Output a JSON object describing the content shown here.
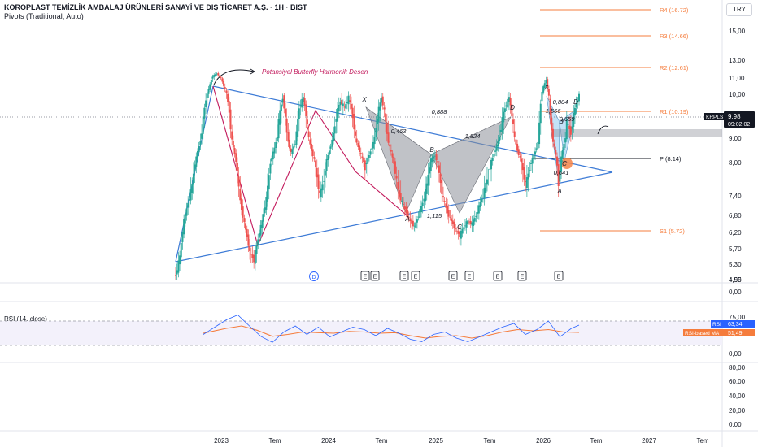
{
  "header": {
    "title": "KOROPLAST TEMİZLİK AMBALAJ ÜRÜNLERİ SANAYİ VE DIŞ TİCARET A.Ş. · 1H · BIST",
    "indicator": "Pivots (Traditional, Auto)",
    "currency": "TRY"
  },
  "colors": {
    "candle_up": "#26a69a",
    "candle_down": "#ef5350",
    "pivot_line": "#f57c3c",
    "pivot_p": "#131722",
    "trendline": "#3d7bd6",
    "zigzag": "#c2185b",
    "harmonic_fill": "#8c8f99",
    "rsi_line": "#2962ff",
    "rsi_ma": "#f57c3c",
    "price_badge": "#131722"
  },
  "annotation": {
    "text": "Potansiyel Butterfly Harmonik Desen"
  },
  "price_badge": {
    "ticker": "KRPLS",
    "price": "9,98",
    "countdown": "09:02:02"
  },
  "rsi": {
    "title": "RSI (14, close)",
    "rsi_label": "RSI",
    "rsi_value": "63,34",
    "ma_label": "RSI-based MA",
    "ma_value": "51,49",
    "upper_band": 70,
    "lower_band": 30
  },
  "chart_data": {
    "type": "candlestick",
    "symbol": "KRPLS",
    "timeframe": "1H",
    "y_ticks": [
      "15,00",
      "13,00",
      "11,00",
      "10,00",
      "9,00",
      "8,00",
      "7,40",
      "6,80",
      "6,20",
      "5,70",
      "5,30",
      "4,90",
      "4,55"
    ],
    "x_ticks": [
      "2023",
      "Tem",
      "2024",
      "Tem",
      "2025",
      "Tem",
      "2026",
      "Tem",
      "2027",
      "Tem"
    ],
    "pivots": [
      {
        "name": "R4",
        "label": "R4 (16.72)",
        "value": 16.72
      },
      {
        "name": "R3",
        "label": "R3 (14.66)",
        "value": 14.66
      },
      {
        "name": "R2",
        "label": "R2 (12.61)",
        "value": 12.61
      },
      {
        "name": "R1",
        "label": "R1 (10.19)",
        "value": 10.19
      },
      {
        "name": "P",
        "label": "P (8.14)",
        "value": 8.14
      },
      {
        "name": "S1",
        "label": "S1 (5.72)",
        "value": 5.72
      }
    ],
    "harmonic_labels": [
      "X",
      "A",
      "B",
      "C",
      "D",
      "X",
      "A",
      "B",
      "C",
      "D"
    ],
    "ratio_labels": [
      "0,888",
      "0,463",
      "1,824",
      "1,115",
      "0,804",
      "1,566",
      "0,659",
      "0,641"
    ],
    "event_markers": [
      "D",
      "E",
      "E",
      "E",
      "E",
      "E",
      "E",
      "E",
      "E",
      "E"
    ],
    "panel2_ticks": [
      "0,00"
    ],
    "rsi_ticks": [
      "75,00",
      "0,00"
    ],
    "panel4_ticks": [
      "80,00",
      "60,00",
      "40,00",
      "20,00",
      "0,00"
    ],
    "close_path": [
      [
        0,
        5.0
      ],
      [
        1,
        5.5
      ],
      [
        2,
        6.6
      ],
      [
        3,
        7.2
      ],
      [
        4,
        7.6
      ],
      [
        5,
        8.2
      ],
      [
        6,
        8.9
      ],
      [
        7,
        9.6
      ],
      [
        8,
        10.3
      ],
      [
        9,
        11.2
      ],
      [
        10,
        11.5
      ],
      [
        11,
        11.0
      ],
      [
        12,
        10.3
      ],
      [
        13,
        9.5
      ],
      [
        14,
        8.6
      ],
      [
        15,
        7.8
      ],
      [
        16,
        7.0
      ],
      [
        17,
        6.3
      ],
      [
        18,
        5.6
      ],
      [
        19,
        5.4
      ],
      [
        20,
        6.0
      ],
      [
        21,
        6.6
      ],
      [
        22,
        7.3
      ],
      [
        23,
        8.0
      ],
      [
        24,
        8.6
      ],
      [
        25,
        9.3
      ],
      [
        26,
        9.9
      ],
      [
        27,
        9.1
      ],
      [
        28,
        8.4
      ],
      [
        29,
        8.8
      ],
      [
        30,
        9.6
      ],
      [
        31,
        9.9
      ],
      [
        32,
        9.2
      ],
      [
        33,
        8.5
      ],
      [
        34,
        7.9
      ],
      [
        35,
        7.4
      ],
      [
        36,
        7.7
      ],
      [
        37,
        8.3
      ],
      [
        38,
        8.9
      ],
      [
        39,
        9.4
      ],
      [
        40,
        9.8
      ],
      [
        41,
        9.6
      ],
      [
        42,
        9.9
      ],
      [
        43,
        9.4
      ],
      [
        44,
        8.8
      ],
      [
        45,
        8.3
      ],
      [
        46,
        7.9
      ],
      [
        47,
        8.3
      ],
      [
        48,
        8.8
      ],
      [
        49,
        9.4
      ],
      [
        50,
        9.9
      ],
      [
        51,
        9.3
      ],
      [
        52,
        8.6
      ],
      [
        53,
        8.0
      ],
      [
        54,
        7.5
      ],
      [
        55,
        7.2
      ],
      [
        56,
        6.9
      ],
      [
        57,
        6.6
      ],
      [
        58,
        6.4
      ],
      [
        59,
        6.8
      ],
      [
        60,
        7.2
      ],
      [
        61,
        7.6
      ],
      [
        62,
        8.1
      ],
      [
        63,
        8.3
      ],
      [
        64,
        7.8
      ],
      [
        65,
        7.3
      ],
      [
        66,
        6.9
      ],
      [
        67,
        6.6
      ],
      [
        68,
        6.3
      ],
      [
        69,
        6.1
      ],
      [
        70,
        6.4
      ],
      [
        71,
        6.6
      ],
      [
        72,
        6.5
      ],
      [
        73,
        6.8
      ],
      [
        74,
        7.2
      ],
      [
        75,
        7.5
      ],
      [
        76,
        7.8
      ],
      [
        77,
        8.2
      ],
      [
        78,
        8.7
      ],
      [
        79,
        9.2
      ],
      [
        80,
        9.6
      ],
      [
        81,
        9.9
      ],
      [
        82,
        9.2
      ],
      [
        83,
        8.5
      ],
      [
        84,
        8.0
      ],
      [
        85,
        7.6
      ],
      [
        86,
        7.9
      ],
      [
        87,
        8.3
      ],
      [
        88,
        8.8
      ],
      [
        89,
        10.2
      ],
      [
        90,
        10.9
      ],
      [
        91,
        9.4
      ],
      [
        92,
        8.6
      ],
      [
        93,
        7.6
      ],
      [
        94,
        8.5
      ],
      [
        95,
        9.3
      ],
      [
        96,
        9.1
      ],
      [
        97,
        9.6
      ],
      [
        98,
        9.98
      ]
    ],
    "rsi_path": [
      [
        0,
        48
      ],
      [
        3,
        60
      ],
      [
        6,
        72
      ],
      [
        9,
        80
      ],
      [
        12,
        62
      ],
      [
        15,
        45
      ],
      [
        18,
        35
      ],
      [
        21,
        52
      ],
      [
        24,
        62
      ],
      [
        27,
        48
      ],
      [
        30,
        60
      ],
      [
        33,
        44
      ],
      [
        36,
        52
      ],
      [
        39,
        60
      ],
      [
        42,
        56
      ],
      [
        45,
        46
      ],
      [
        48,
        58
      ],
      [
        51,
        50
      ],
      [
        54,
        40
      ],
      [
        57,
        36
      ],
      [
        60,
        48
      ],
      [
        63,
        52
      ],
      [
        66,
        42
      ],
      [
        69,
        36
      ],
      [
        72,
        44
      ],
      [
        75,
        52
      ],
      [
        78,
        60
      ],
      [
        81,
        66
      ],
      [
        84,
        48
      ],
      [
        87,
        56
      ],
      [
        90,
        70
      ],
      [
        93,
        44
      ],
      [
        96,
        58
      ],
      [
        98,
        63.34
      ]
    ],
    "rsi_ma_path": [
      [
        0,
        50
      ],
      [
        6,
        58
      ],
      [
        10,
        62
      ],
      [
        14,
        55
      ],
      [
        18,
        45
      ],
      [
        22,
        48
      ],
      [
        26,
        52
      ],
      [
        30,
        51
      ],
      [
        34,
        50
      ],
      [
        38,
        53
      ],
      [
        42,
        52
      ],
      [
        46,
        50
      ],
      [
        50,
        51
      ],
      [
        54,
        46
      ],
      [
        58,
        42
      ],
      [
        62,
        45
      ],
      [
        66,
        46
      ],
      [
        70,
        42
      ],
      [
        74,
        46
      ],
      [
        78,
        52
      ],
      [
        82,
        56
      ],
      [
        86,
        54
      ],
      [
        90,
        56
      ],
      [
        94,
        52
      ],
      [
        98,
        51.49
      ]
    ]
  }
}
